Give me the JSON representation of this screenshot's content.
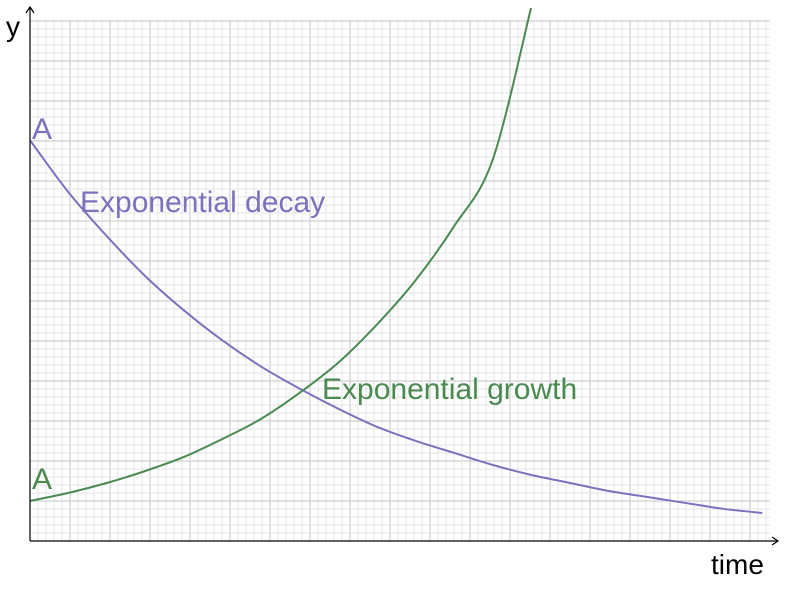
{
  "chart_data": {
    "type": "line",
    "xlabel": "time",
    "ylabel": "y",
    "series": [
      {
        "name": "Exponential decay",
        "color": "#7b72bd",
        "start_label": "A",
        "x": [
          0,
          1,
          2,
          3,
          4,
          5,
          6,
          7,
          8,
          9,
          10,
          11,
          12,
          13,
          14,
          15,
          16,
          17,
          18,
          19
        ],
        "y": [
          20.0,
          17.4,
          15.2,
          13.2,
          11.5,
          10.0,
          8.7,
          7.6,
          6.6,
          5.7,
          5.0,
          4.4,
          3.8,
          3.3,
          2.9,
          2.5,
          2.2,
          1.9,
          1.6,
          1.4
        ]
      },
      {
        "name": "Exponential growth",
        "color": "#4a8a50",
        "start_label": "A",
        "x": [
          0,
          1,
          2,
          3,
          4,
          5,
          6,
          7,
          8,
          9,
          10,
          11,
          12,
          13
        ],
        "y": [
          2.0,
          2.4,
          2.9,
          3.5,
          4.2,
          5.1,
          6.1,
          7.4,
          8.9,
          10.8,
          13.0,
          15.7,
          19.0,
          26.6
        ]
      }
    ],
    "xlim": [
      0,
      19.2
    ],
    "ylim": [
      0,
      26.6
    ],
    "grid": true
  }
}
